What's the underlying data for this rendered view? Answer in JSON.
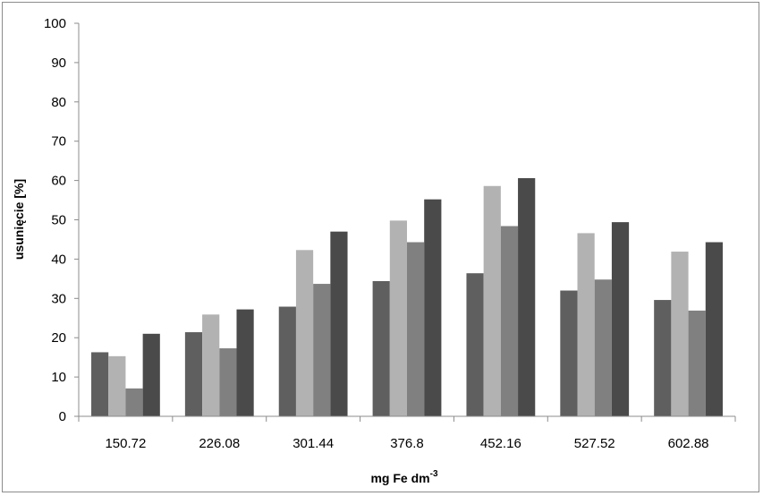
{
  "chart_data": {
    "type": "bar",
    "xlabel": "mg Fe dm",
    "xlabel_superscript": "-3",
    "ylabel": "usunięcie [%]",
    "ylim": [
      0,
      100
    ],
    "yticks": [
      0,
      10,
      20,
      30,
      40,
      50,
      60,
      70,
      80,
      90,
      100
    ],
    "categories": [
      "150.72",
      "226.08",
      "301.44",
      "376.8",
      "452.16",
      "527.52",
      "602.88"
    ],
    "grid": false,
    "legend": "none",
    "series": [
      {
        "values": [
          16.3,
          21.4,
          27.9,
          34.4,
          36.4,
          32.0,
          29.6
        ],
        "color": "#5f5f5f"
      },
      {
        "values": [
          15.3,
          25.9,
          42.3,
          49.8,
          58.6,
          46.6,
          41.9
        ],
        "color": "#b2b2b2"
      },
      {
        "values": [
          7.1,
          17.3,
          33.7,
          44.3,
          48.4,
          34.8,
          26.9
        ],
        "color": "#808080"
      },
      {
        "values": [
          21.0,
          27.2,
          47.0,
          55.2,
          60.6,
          49.4,
          44.3
        ],
        "color": "#4a4a4a"
      }
    ]
  }
}
